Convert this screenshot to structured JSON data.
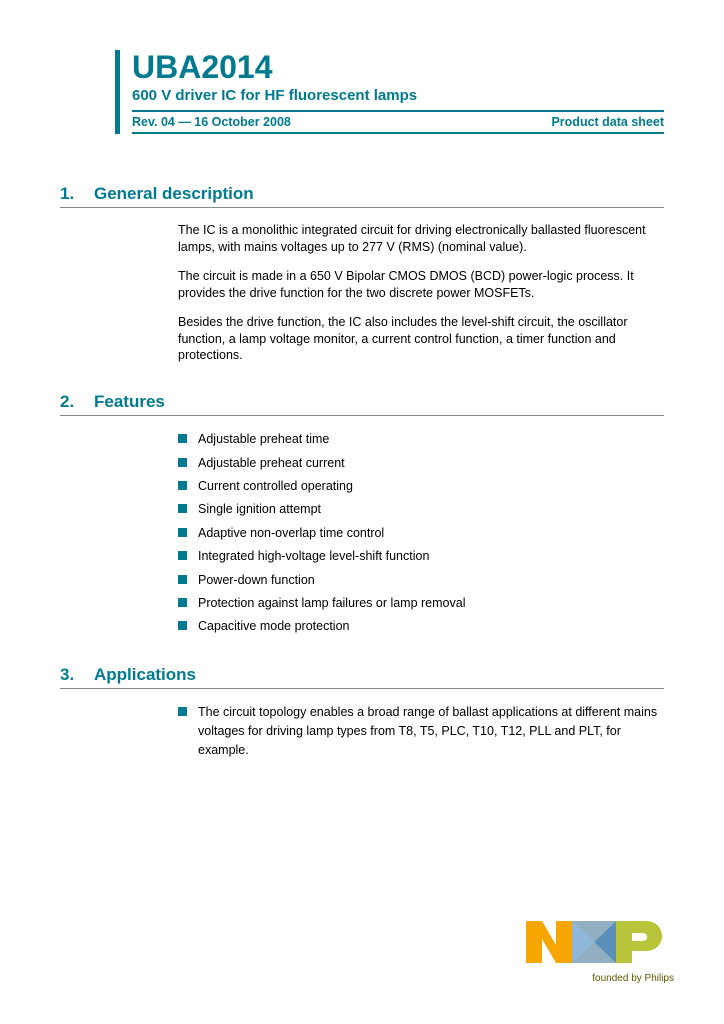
{
  "header": {
    "title": "UBA2014",
    "subtitle": "600 V driver IC for HF fluorescent lamps",
    "revision": "Rev. 04 — 16 October 2008",
    "doctype": "Product data sheet"
  },
  "sections": {
    "s1": {
      "num": "1.",
      "title": "General description",
      "p1": "The IC is a monolithic integrated circuit for driving electronically ballasted fluorescent lamps, with mains voltages up to 277 V (RMS) (nominal value).",
      "p2": "The circuit is made in a 650 V Bipolar CMOS DMOS (BCD) power-logic process. It provides the drive function for the two discrete power MOSFETs.",
      "p3": "Besides the drive function, the IC also includes the level-shift circuit, the oscillator function, a lamp voltage monitor, a current control function, a timer function and protections."
    },
    "s2": {
      "num": "2.",
      "title": "Features",
      "items": [
        "Adjustable preheat time",
        "Adjustable preheat current",
        "Current controlled operating",
        "Single ignition attempt",
        "Adaptive non-overlap time control",
        "Integrated high-voltage level-shift function",
        "Power-down function",
        "Protection against lamp failures or lamp removal",
        "Capacitive mode protection"
      ]
    },
    "s3": {
      "num": "3.",
      "title": "Applications",
      "p1": "The circuit topology enables a broad range of ballast applications at different mains voltages for driving lamp types from T8, T5, PLC, T10, T12, PLL and PLT, for example."
    }
  },
  "logo": {
    "founded": "founded by Philips",
    "colors": {
      "orange": "#f5a600",
      "blue_light": "#8fb8d8",
      "blue_dark": "#5a8fb8",
      "green": "#b8c43a",
      "olive": "#6a6a00"
    }
  }
}
